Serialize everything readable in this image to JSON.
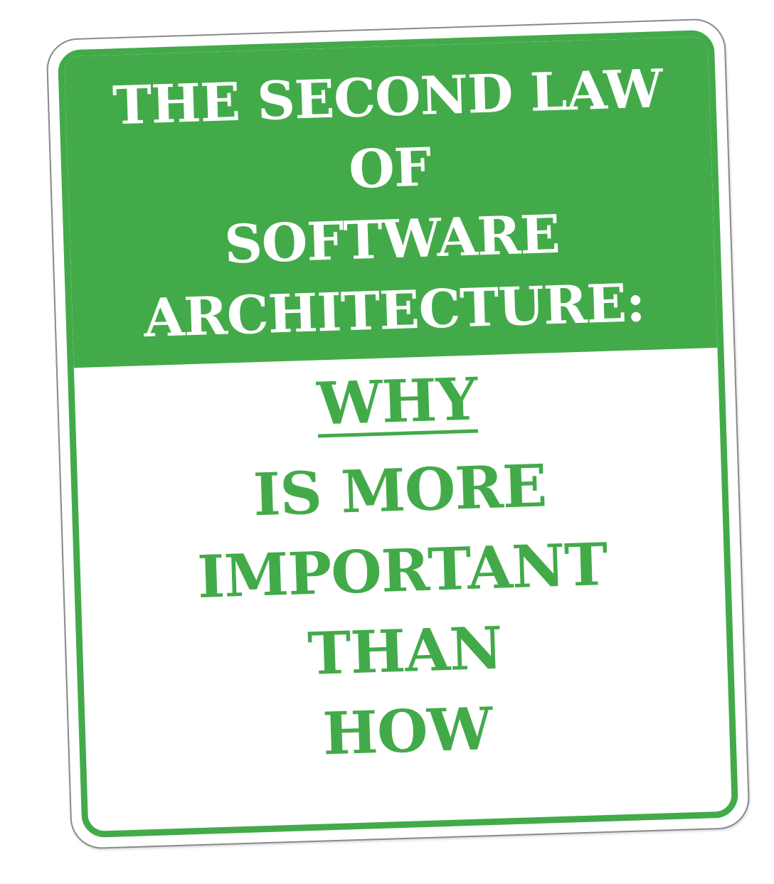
{
  "sign": {
    "header_lines": [
      "THE SECOND LAW",
      "OF",
      "SOFTWARE",
      "ARCHITECTURE:"
    ],
    "body_lines": [
      "WHY",
      "IS MORE",
      "IMPORTANT",
      "THAN",
      "HOW"
    ],
    "colors": {
      "green": "#43aa4a",
      "white": "#ffffff",
      "frame": "#8a8a8a"
    }
  }
}
